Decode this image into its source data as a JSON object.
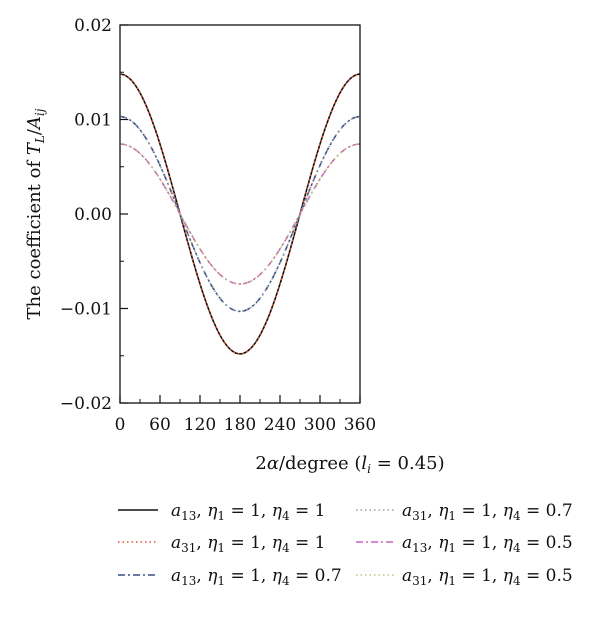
{
  "chart_data": {
    "type": "line",
    "xlabel": "2α/degree (l_i = 0.45)",
    "ylabel": "The coefficient of T_L/A_ij",
    "xlim": [
      0,
      360
    ],
    "ylim": [
      -0.02,
      0.02
    ],
    "xticks": [
      "0",
      "60",
      "120",
      "180",
      "240",
      "300",
      "360"
    ],
    "yticks": [
      "0.02",
      "0.01",
      "0.00",
      "−0.01",
      "−0.02"
    ],
    "grid": false,
    "legend_position": "bottom",
    "x": [
      0,
      15,
      30,
      45,
      60,
      75,
      90,
      105,
      120,
      135,
      150,
      165,
      180,
      195,
      210,
      225,
      240,
      255,
      270,
      285,
      300,
      315,
      330,
      345,
      360
    ],
    "series": [
      {
        "name": "a13, η1 = 1, η4 = 1",
        "color": "#111111",
        "dash": "solid",
        "values": [
          0.0148,
          0.0143,
          0.0128,
          0.0105,
          0.0074,
          0.0038,
          0.0,
          -0.0038,
          -0.0074,
          -0.0105,
          -0.0128,
          -0.0143,
          -0.0148,
          -0.0143,
          -0.0128,
          -0.0105,
          -0.0074,
          -0.0038,
          0.0,
          0.0038,
          0.0074,
          0.0105,
          0.0128,
          0.0143,
          0.0148
        ]
      },
      {
        "name": "a31, η1 = 1, η4 = 1",
        "color": "#e8552f",
        "dash": "dotted",
        "values": [
          0.0148,
          0.0143,
          0.0128,
          0.0105,
          0.0074,
          0.0038,
          0.0,
          -0.0038,
          -0.0074,
          -0.0105,
          -0.0128,
          -0.0143,
          -0.0148,
          -0.0143,
          -0.0128,
          -0.0105,
          -0.0074,
          -0.0038,
          0.0,
          0.0038,
          0.0074,
          0.0105,
          0.0128,
          0.0143,
          0.0148
        ]
      },
      {
        "name": "a13, η1 = 1, η4 = 0.7",
        "color": "#3c4f8a",
        "dash": "dashdot",
        "values": [
          0.0103,
          0.0099,
          0.0089,
          0.0073,
          0.0052,
          0.0027,
          0.0,
          -0.0027,
          -0.0052,
          -0.0073,
          -0.0089,
          -0.0099,
          -0.0103,
          -0.0099,
          -0.0089,
          -0.0073,
          -0.0052,
          -0.0027,
          0.0,
          0.0027,
          0.0052,
          0.0073,
          0.0089,
          0.0099,
          0.0103
        ]
      },
      {
        "name": "a31, η1 = 1, η4 = 0.7",
        "color": "#9aa3a8",
        "dash": "dotted",
        "values": [
          0.0103,
          0.0099,
          0.0089,
          0.0073,
          0.0052,
          0.0027,
          0.0,
          -0.0027,
          -0.0052,
          -0.0073,
          -0.0089,
          -0.0099,
          -0.0103,
          -0.0099,
          -0.0089,
          -0.0073,
          -0.0052,
          -0.0027,
          0.0,
          0.0027,
          0.0052,
          0.0073,
          0.0089,
          0.0099,
          0.0103
        ]
      },
      {
        "name": "a13, η1 = 1, η4 = 0.5",
        "color": "#c864c0",
        "dash": "dashdot",
        "values": [
          0.0074,
          0.0071,
          0.0064,
          0.0052,
          0.0037,
          0.0019,
          0.0,
          -0.0019,
          -0.0037,
          -0.0052,
          -0.0064,
          -0.0071,
          -0.0074,
          -0.0071,
          -0.0064,
          -0.0052,
          -0.0037,
          -0.0019,
          0.0,
          0.0019,
          0.0037,
          0.0052,
          0.0064,
          0.0071,
          0.0074
        ]
      },
      {
        "name": "a31, η1 = 1, η4 = 0.5",
        "color": "#c2c77a",
        "dash": "dotted",
        "values": [
          0.0074,
          0.0071,
          0.0064,
          0.0052,
          0.0037,
          0.0019,
          0.0,
          -0.0019,
          -0.0037,
          -0.0052,
          -0.0064,
          -0.0071,
          -0.0074,
          -0.0071,
          -0.0064,
          -0.0052,
          -0.0037,
          -0.0019,
          0.0,
          0.0019,
          0.0037,
          0.0052,
          0.0064,
          0.0071,
          0.0074
        ]
      }
    ]
  },
  "legend": [
    {
      "sym": "a",
      "sub": "13",
      "e1": "η",
      "e1sub": "1",
      "e1val": " = 1, ",
      "e4": "η",
      "e4sub": "4",
      "e4val": " = 1"
    },
    {
      "sym": "a",
      "sub": "31",
      "e1": "η",
      "e1sub": "1",
      "e1val": " = 1, ",
      "e4": "η",
      "e4sub": "4",
      "e4val": " = 1"
    },
    {
      "sym": "a",
      "sub": "13",
      "e1": "η",
      "e1sub": "1",
      "e1val": " = 1, ",
      "e4": "η",
      "e4sub": "4",
      "e4val": " = 0.7"
    },
    {
      "sym": "a",
      "sub": "31",
      "e1": "η",
      "e1sub": "1",
      "e1val": " = 1, ",
      "e4": "η",
      "e4sub": "4",
      "e4val": " = 0.7"
    },
    {
      "sym": "a",
      "sub": "13",
      "e1": "η",
      "e1sub": "1",
      "e1val": " = 1, ",
      "e4": "η",
      "e4sub": "4",
      "e4val": " = 0.5"
    },
    {
      "sym": "a",
      "sub": "31",
      "e1": "η",
      "e1sub": "1",
      "e1val": " = 1, ",
      "e4": "η",
      "e4sub": "4",
      "e4val": " = 0.5"
    }
  ],
  "axis_titles": {
    "x_prefix": "2",
    "x_alpha": "α",
    "x_unit": "/degree (",
    "x_l": "l",
    "x_lsub": "i",
    "x_val": " = 0.45)",
    "y_prefix": "The coefficient of ",
    "y_T": "T",
    "y_Tsub": "L",
    "y_slash": "/",
    "y_A": "A",
    "y_Asub": "ij"
  }
}
